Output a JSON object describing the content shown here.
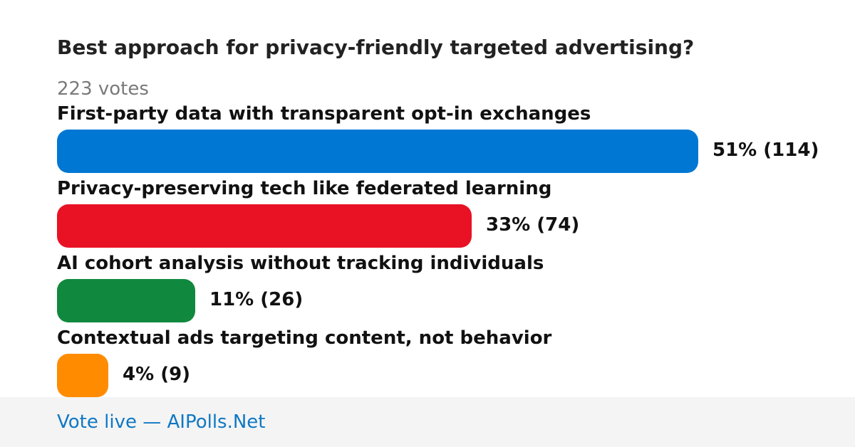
{
  "poll": {
    "title": "Best approach for privacy-friendly targeted advertising?",
    "votes_label": "223 votes"
  },
  "chart_data": {
    "type": "bar",
    "orientation": "horizontal",
    "max_percent": 51,
    "categories": [
      "First-party data with transparent opt-in exchanges",
      "Privacy-preserving tech like federated learning",
      "AI cohort analysis without tracking individuals",
      "Contextual ads targeting content, not behavior"
    ],
    "percent": [
      51,
      33,
      11,
      4
    ],
    "votes": [
      114,
      74,
      26,
      9
    ],
    "result_labels": [
      "51% (114)",
      "33% (74)",
      "11% (26)",
      "4% (9)"
    ],
    "colors": [
      "#0177d4",
      "#e81224",
      "#10893e",
      "#ff8c00"
    ]
  },
  "footer": {
    "link_text": "Vote live — AIPolls.Net"
  }
}
